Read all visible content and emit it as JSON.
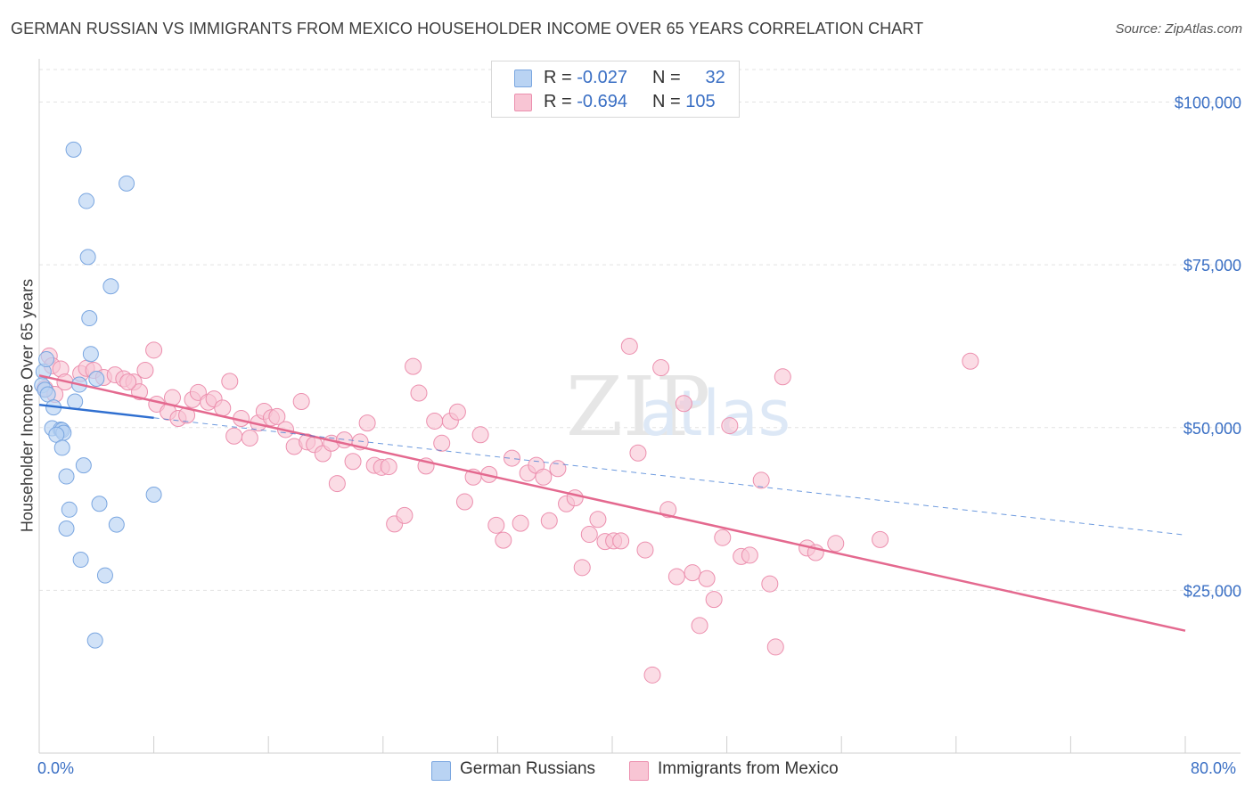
{
  "title": "GERMAN RUSSIAN VS IMMIGRANTS FROM MEXICO HOUSEHOLDER INCOME OVER 65 YEARS CORRELATION CHART",
  "source": "Source: ZipAtlas.com",
  "watermark": {
    "zip": "ZIP",
    "atlas": "atlas"
  },
  "legend": {
    "series1": {
      "r_label": "R = ",
      "r_value": "-0.027",
      "n_label": "N = ",
      "n_value": "32"
    },
    "series2": {
      "r_label": "R = ",
      "r_value": "-0.694",
      "n_label": "N = ",
      "n_value": "105"
    }
  },
  "colors": {
    "blue_fill": "#b9d3f3",
    "blue_stroke": "#7aa6e0",
    "blue_line": "#2f6fd0",
    "pink_fill": "#f8c5d4",
    "pink_stroke": "#ec8fae",
    "pink_line": "#e4698f",
    "grid": "#e3e3e3",
    "axis_text": "#3a6fc4"
  },
  "chart_data": {
    "type": "scatter",
    "title": "GERMAN RUSSIAN VS IMMIGRANTS FROM MEXICO HOUSEHOLDER INCOME OVER 65 YEARS CORRELATION CHART",
    "xlabel": "",
    "ylabel": "Householder Income Over 65 years",
    "xlim": [
      0,
      80
    ],
    "ylim": [
      0,
      105000
    ],
    "x_tick_labels": [
      "0.0%",
      "80.0%"
    ],
    "y_ticks": [
      25000,
      50000,
      75000,
      100000
    ],
    "y_tick_labels": [
      "$25,000",
      "$50,000",
      "$75,000",
      "$100,000"
    ],
    "grid": true,
    "legend_position": "bottom",
    "series": [
      {
        "name": "German Russians",
        "color": "#b9d3f3",
        "trend": {
          "solid": [
            [
              0,
              53500
            ],
            [
              8,
              51500
            ]
          ],
          "dashed": [
            [
              8,
              51500
            ],
            [
              80,
              33500
            ]
          ]
        },
        "points": [
          [
            2.4,
            92700
          ],
          [
            3.3,
            84800
          ],
          [
            6.1,
            87500
          ],
          [
            3.4,
            76200
          ],
          [
            5.0,
            71700
          ],
          [
            3.5,
            66800
          ],
          [
            3.6,
            61300
          ],
          [
            0.3,
            58600
          ],
          [
            0.2,
            56500
          ],
          [
            2.8,
            56600
          ],
          [
            0.4,
            55800
          ],
          [
            0.6,
            55100
          ],
          [
            4.0,
            57500
          ],
          [
            1.0,
            53100
          ],
          [
            2.5,
            54000
          ],
          [
            0.9,
            49900
          ],
          [
            1.5,
            49700
          ],
          [
            1.6,
            49600
          ],
          [
            1.7,
            49200
          ],
          [
            1.2,
            48900
          ],
          [
            1.6,
            46900
          ],
          [
            3.1,
            44200
          ],
          [
            1.9,
            42500
          ],
          [
            8.0,
            39700
          ],
          [
            4.2,
            38300
          ],
          [
            2.1,
            37400
          ],
          [
            5.4,
            35100
          ],
          [
            1.9,
            34500
          ],
          [
            2.9,
            29700
          ],
          [
            4.6,
            27300
          ],
          [
            3.9,
            17300
          ],
          [
            0.5,
            60500
          ]
        ]
      },
      {
        "name": "Immigrants from Mexico",
        "color": "#f8c5d4",
        "trend": {
          "solid": [
            [
              0,
              58000
            ],
            [
              80,
              18800
            ]
          ]
        },
        "points": [
          [
            0.7,
            61000
          ],
          [
            0.9,
            59500
          ],
          [
            1.5,
            59000
          ],
          [
            1.8,
            57000
          ],
          [
            2.9,
            58300
          ],
          [
            3.3,
            59100
          ],
          [
            3.8,
            58800
          ],
          [
            4.5,
            57700
          ],
          [
            5.3,
            58100
          ],
          [
            5.9,
            57500
          ],
          [
            6.6,
            57000
          ],
          [
            7.0,
            55500
          ],
          [
            7.4,
            58800
          ],
          [
            8.0,
            61900
          ],
          [
            8.2,
            53600
          ],
          [
            9.0,
            52400
          ],
          [
            9.3,
            54600
          ],
          [
            9.7,
            51400
          ],
          [
            10.3,
            51900
          ],
          [
            10.7,
            54300
          ],
          [
            11.1,
            55400
          ],
          [
            11.8,
            53900
          ],
          [
            12.2,
            54400
          ],
          [
            12.8,
            53000
          ],
          [
            13.3,
            57100
          ],
          [
            13.6,
            48700
          ],
          [
            14.1,
            51400
          ],
          [
            14.7,
            48400
          ],
          [
            15.3,
            50700
          ],
          [
            15.7,
            52500
          ],
          [
            16.2,
            51500
          ],
          [
            16.6,
            51700
          ],
          [
            17.2,
            49700
          ],
          [
            17.8,
            47100
          ],
          [
            18.3,
            54000
          ],
          [
            18.7,
            47800
          ],
          [
            19.2,
            47400
          ],
          [
            19.8,
            46000
          ],
          [
            20.4,
            47600
          ],
          [
            20.8,
            41400
          ],
          [
            21.3,
            48100
          ],
          [
            21.9,
            44800
          ],
          [
            22.4,
            47800
          ],
          [
            22.9,
            50700
          ],
          [
            23.4,
            44200
          ],
          [
            23.9,
            43900
          ],
          [
            24.4,
            44000
          ],
          [
            24.8,
            35200
          ],
          [
            25.5,
            36500
          ],
          [
            26.1,
            59400
          ],
          [
            26.5,
            55300
          ],
          [
            27.0,
            44100
          ],
          [
            27.6,
            51000
          ],
          [
            28.1,
            47600
          ],
          [
            28.7,
            51000
          ],
          [
            29.2,
            52400
          ],
          [
            29.7,
            38600
          ],
          [
            30.3,
            42400
          ],
          [
            30.8,
            48900
          ],
          [
            31.4,
            42800
          ],
          [
            31.9,
            35000
          ],
          [
            32.4,
            32700
          ],
          [
            33.0,
            45300
          ],
          [
            33.6,
            35300
          ],
          [
            34.1,
            43000
          ],
          [
            34.7,
            44200
          ],
          [
            35.2,
            42400
          ],
          [
            35.6,
            35700
          ],
          [
            36.2,
            43700
          ],
          [
            36.8,
            38300
          ],
          [
            37.4,
            39200
          ],
          [
            37.9,
            28500
          ],
          [
            38.4,
            33600
          ],
          [
            39.0,
            35900
          ],
          [
            39.5,
            32500
          ],
          [
            40.1,
            32600
          ],
          [
            40.6,
            32600
          ],
          [
            41.2,
            62500
          ],
          [
            41.8,
            46100
          ],
          [
            42.3,
            31200
          ],
          [
            42.8,
            12000
          ],
          [
            43.4,
            59200
          ],
          [
            43.9,
            37400
          ],
          [
            44.5,
            27100
          ],
          [
            45.0,
            53700
          ],
          [
            45.6,
            27700
          ],
          [
            46.1,
            19600
          ],
          [
            46.6,
            26800
          ],
          [
            47.1,
            23600
          ],
          [
            47.7,
            33100
          ],
          [
            48.2,
            50300
          ],
          [
            49.0,
            30200
          ],
          [
            49.6,
            30400
          ],
          [
            50.4,
            41900
          ],
          [
            51.0,
            26000
          ],
          [
            51.4,
            16300
          ],
          [
            51.9,
            57800
          ],
          [
            53.6,
            31500
          ],
          [
            54.2,
            30800
          ],
          [
            55.6,
            32200
          ],
          [
            58.7,
            32800
          ],
          [
            65.0,
            60200
          ],
          [
            0.4,
            56000
          ],
          [
            1.1,
            55100
          ],
          [
            6.2,
            57000
          ]
        ]
      }
    ]
  },
  "bottom_legend": {
    "series1": "German Russians",
    "series2": "Immigrants from Mexico"
  }
}
